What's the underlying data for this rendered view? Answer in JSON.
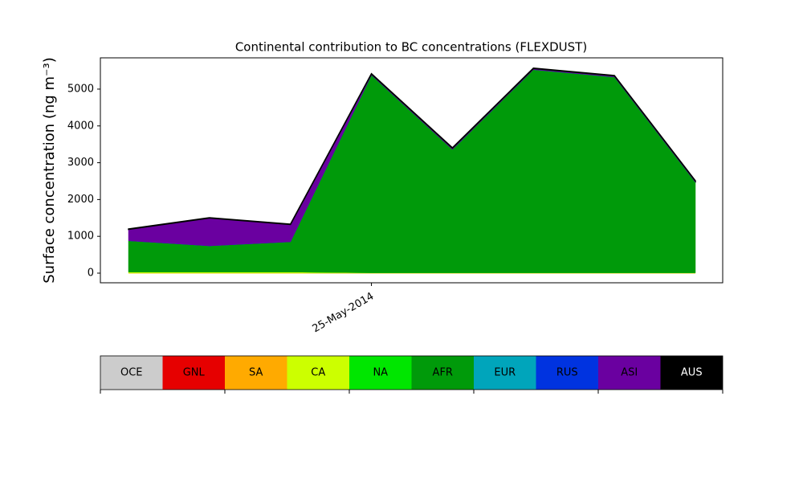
{
  "chart_data": {
    "type": "stacked_area",
    "title": "Continental contribution to BC concentrations (FLEXDUST)",
    "y_label": "Surface concentration (ng m⁻³)",
    "categories": [
      null,
      null,
      null,
      "25-May-2014",
      null,
      null,
      null,
      null
    ],
    "ylim": [
      -262,
      5850
    ],
    "yticks": [
      0,
      1000,
      2000,
      3000,
      4000,
      5000
    ],
    "legend": "bottom",
    "series": [
      {
        "name": "OCE",
        "color": "#cccccc",
        "values": [
          0,
          0,
          0,
          0,
          0,
          0,
          0,
          0
        ]
      },
      {
        "name": "GNL",
        "color": "#e60000",
        "values": [
          0,
          0,
          0,
          0,
          0,
          0,
          0,
          0
        ]
      },
      {
        "name": "SA",
        "color": "#ffaa00",
        "values": [
          0,
          0,
          0,
          0,
          0,
          0,
          0,
          0
        ]
      },
      {
        "name": "CA",
        "color": "#ccff00",
        "values": [
          30,
          30,
          30,
          10,
          10,
          10,
          10,
          10
        ]
      },
      {
        "name": "NA",
        "color": "#00e600",
        "values": [
          0,
          0,
          0,
          0,
          0,
          0,
          0,
          0
        ]
      },
      {
        "name": "AFR",
        "color": "#009a0a",
        "values": [
          850,
          712,
          822,
          5370,
          3350,
          5520,
          5320,
          2460
        ]
      },
      {
        "name": "EUR",
        "color": "#00a5bb",
        "values": [
          0,
          0,
          0,
          0,
          0,
          0,
          0,
          0
        ]
      },
      {
        "name": "RUS",
        "color": "#0033e0",
        "values": [
          0,
          0,
          0,
          0,
          0,
          0,
          0,
          0
        ]
      },
      {
        "name": "ASI",
        "color": "#6a00a0",
        "values": [
          310,
          755,
          470,
          30,
          36,
          30,
          30,
          30
        ]
      },
      {
        "name": "AUS",
        "color": "#000000",
        "values": [
          10,
          10,
          10,
          10,
          10,
          10,
          10,
          10
        ]
      }
    ]
  }
}
